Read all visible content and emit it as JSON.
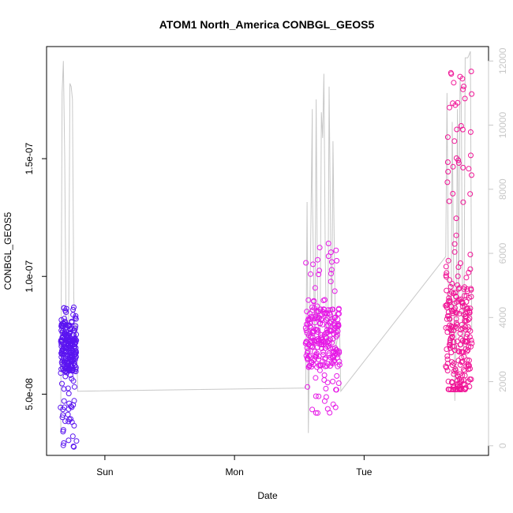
{
  "chart_data": {
    "type": "scatter",
    "title": "ATOM1 North_America CONBGL_GEOS5",
    "xlabel": "Date",
    "ylabel": "CONBGL_GEOS5",
    "x_tick_labels": [
      "Sun",
      "Mon",
      "Tue"
    ],
    "y_tick_labels": [
      "5.0e-08",
      "1.0e-07",
      "1.5e-07"
    ],
    "y2_tick_labels": [
      "0",
      "2000",
      "4000",
      "6000",
      "8000",
      "10000",
      "12000"
    ],
    "x_ticks_days": [
      1,
      2,
      3
    ],
    "y_ticks": [
      5e-08,
      1e-07,
      1.5e-07
    ],
    "y2_ticks": [
      0,
      2000,
      4000,
      6000,
      8000,
      10000,
      12000
    ],
    "xlim_days": [
      0.55,
      3.96
    ],
    "ylim": [
      2.4e-08,
      1.976e-07
    ],
    "y2lim": [
      -300,
      12450
    ],
    "grid": false,
    "colors": {
      "clusterA": "#5a14f0",
      "clusterB": "#e61ae6",
      "clusterC": "#f01496",
      "altitude_line": "#c8c8c8",
      "secondary_axis": "#c8c8c8",
      "axis": "#000000"
    },
    "clusters": [
      {
        "x_start": 0.66,
        "x_end": 0.78,
        "y_min": 2.7e-08,
        "y_max": 8.7e-08,
        "y_center": 7e-08,
        "color_key": "clusterA"
      },
      {
        "x_start": 2.55,
        "x_end": 2.81,
        "y_min": 4.2e-08,
        "y_max": 1.14e-07,
        "y_center": 7.4e-08,
        "color_key": "clusterB"
      },
      {
        "x_start": 3.63,
        "x_end": 3.83,
        "y_min": 5.2e-08,
        "y_max": 1.88e-07,
        "y_center": 7.2e-08,
        "color_key": "clusterC"
      }
    ],
    "altitude_series": {
      "name": "",
      "x": [
        0.66,
        0.66,
        0.67,
        0.68,
        0.69,
        0.7,
        0.72,
        0.73,
        0.74,
        0.75,
        0.76,
        0.77,
        0.78,
        0.79,
        2.55,
        2.56,
        2.57,
        2.58,
        2.6,
        2.6,
        2.62,
        2.63,
        2.64,
        2.65,
        2.66,
        2.67,
        2.68,
        2.69,
        2.7,
        2.71,
        2.72,
        2.73,
        2.75,
        2.76,
        2.78,
        2.8,
        2.81,
        2.82,
        3.63,
        3.64,
        3.65,
        3.67,
        3.68,
        3.7,
        3.71,
        3.72,
        3.73,
        3.74,
        3.75,
        3.76,
        3.77,
        3.78,
        3.8,
        3.81,
        3.82,
        3.83
      ],
      "y": [
        400,
        1500,
        11000,
        12000,
        9000,
        4000,
        3500,
        11300,
        11200,
        10800,
        4600,
        3600,
        3800,
        1700,
        1800,
        7600,
        400,
        3800,
        10500,
        8000,
        3000,
        10800,
        5000,
        3200,
        3000,
        10400,
        9600,
        11600,
        6000,
        3300,
        3000,
        11200,
        3200,
        9500,
        3000,
        3500,
        3900,
        1700,
        5900,
        11000,
        5000,
        3000,
        10100,
        1400,
        3500,
        10500,
        4500,
        11400,
        10800,
        3300,
        3000,
        12100,
        12100,
        12200,
        12300,
        3600
      ]
    }
  }
}
